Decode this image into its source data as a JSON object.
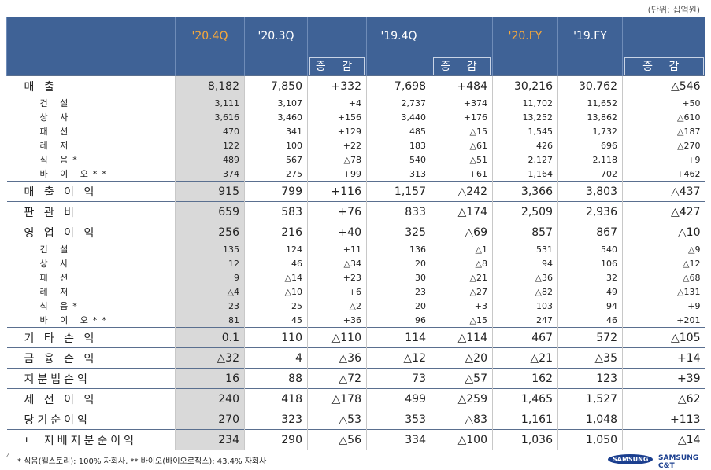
{
  "unit": "(단위: 십억원)",
  "table": {
    "header": [
      "'20.4Q",
      "'20.3Q",
      "증 감",
      "'19.4Q",
      "증 감",
      "'20.FY",
      "'19.FY",
      "증 감"
    ],
    "rows": [
      {
        "label": "매 출",
        "cells": [
          "8,182",
          "7,850",
          "+332",
          "7,698",
          "+484",
          "30,216",
          "30,762",
          "△546"
        ]
      },
      {
        "label": "건 설",
        "cells": [
          "3,111",
          "3,107",
          "+4",
          "2,737",
          "+374",
          "11,702",
          "11,652",
          "+50"
        ]
      },
      {
        "label": "상 사",
        "cells": [
          "3,616",
          "3,460",
          "+156",
          "3,440",
          "+176",
          "13,252",
          "13,862",
          "△610"
        ]
      },
      {
        "label": "패 션",
        "cells": [
          "470",
          "341",
          "+129",
          "485",
          "△15",
          "1,545",
          "1,732",
          "△187"
        ]
      },
      {
        "label": "레 저",
        "cells": [
          "122",
          "100",
          "+22",
          "183",
          "△61",
          "426",
          "696",
          "△270"
        ]
      },
      {
        "label": "식 음*",
        "cells": [
          "489",
          "567",
          "△78",
          "540",
          "△51",
          "2,127",
          "2,118",
          "+9"
        ]
      },
      {
        "label": "바 이 오**",
        "cells": [
          "374",
          "275",
          "+99",
          "313",
          "+61",
          "1,164",
          "702",
          "+462"
        ]
      },
      {
        "label": "매 출 이 익",
        "cells": [
          "915",
          "799",
          "+116",
          "1,157",
          "△242",
          "3,366",
          "3,803",
          "△437"
        ]
      },
      {
        "label": "판 관 비",
        "cells": [
          "659",
          "583",
          "+76",
          "833",
          "△174",
          "2,509",
          "2,936",
          "△427"
        ]
      },
      {
        "label": "영 업 이 익",
        "cells": [
          "256",
          "216",
          "+40",
          "325",
          "△69",
          "857",
          "867",
          "△10"
        ]
      },
      {
        "label": "건 설",
        "cells": [
          "135",
          "124",
          "+11",
          "136",
          "△1",
          "531",
          "540",
          "△9"
        ]
      },
      {
        "label": "상 사",
        "cells": [
          "12",
          "46",
          "△34",
          "20",
          "△8",
          "94",
          "106",
          "△12"
        ]
      },
      {
        "label": "패 션",
        "cells": [
          "9",
          "△14",
          "+23",
          "30",
          "△21",
          "△36",
          "32",
          "△68"
        ]
      },
      {
        "label": "레 저",
        "cells": [
          "△4",
          "△10",
          "+6",
          "23",
          "△27",
          "△82",
          "49",
          "△131"
        ]
      },
      {
        "label": "식 음*",
        "cells": [
          "23",
          "25",
          "△2",
          "20",
          "+3",
          "103",
          "94",
          "+9"
        ]
      },
      {
        "label": "바 이 오**",
        "cells": [
          "81",
          "45",
          "+36",
          "96",
          "△15",
          "247",
          "46",
          "+201"
        ]
      },
      {
        "label": "기 타 손 익",
        "cells": [
          "0.1",
          "110",
          "△110",
          "114",
          "△114",
          "467",
          "572",
          "△105"
        ]
      },
      {
        "label": "금 융 손 익",
        "cells": [
          "△32",
          "4",
          "△36",
          "△12",
          "△20",
          "△21",
          "△35",
          "+14"
        ]
      },
      {
        "label": "지분법손익",
        "cells": [
          "16",
          "88",
          "△72",
          "73",
          "△57",
          "162",
          "123",
          "+39"
        ]
      },
      {
        "label": "세 전 이 익",
        "cells": [
          "240",
          "418",
          "△178",
          "499",
          "△259",
          "1,465",
          "1,527",
          "△62"
        ]
      },
      {
        "label": "당기순이익",
        "cells": [
          "270",
          "323",
          "△53",
          "353",
          "△83",
          "1,161",
          "1,048",
          "+113"
        ]
      },
      {
        "label": "ㄴ 지배지분순이익",
        "cells": [
          "234",
          "290",
          "△56",
          "334",
          "△100",
          "1,036",
          "1,050",
          "△14"
        ]
      }
    ]
  },
  "footer": {
    "page": "4",
    "note": "* 식음(웰스토리): 100% 자회사, ** 바이오(바이오로직스): 43.4% 자회사",
    "logo": "SAMSUNG",
    "brand": "SAMSUNG C&T"
  }
}
